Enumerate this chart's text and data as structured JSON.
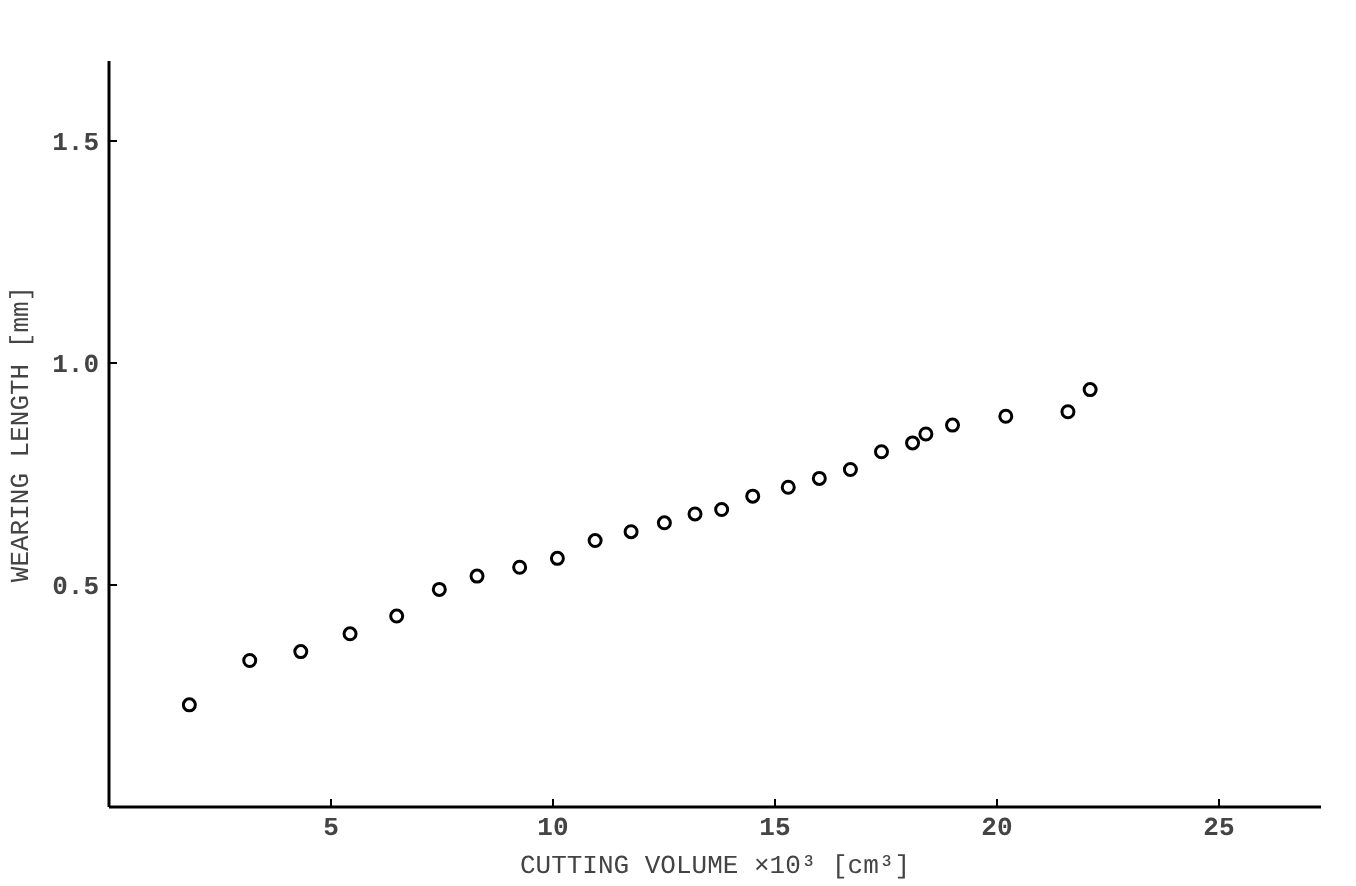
{
  "chart_data": {
    "type": "scatter",
    "xlabel": "CUTTING VOLUME ×10³ [cm³]",
    "ylabel": "WEARING LENGTH [mm]",
    "x": [
      1.81,
      3.17,
      4.32,
      5.43,
      6.48,
      7.44,
      8.29,
      9.25,
      10.1,
      10.95,
      11.76,
      12.51,
      13.2,
      13.8,
      14.5,
      15.3,
      16.0,
      16.7,
      17.4,
      18.1,
      18.4,
      19.0,
      20.2,
      21.6,
      22.1
    ],
    "values": [
      0.23,
      0.33,
      0.35,
      0.39,
      0.43,
      0.49,
      0.52,
      0.54,
      0.56,
      0.6,
      0.62,
      0.64,
      0.66,
      0.67,
      0.7,
      0.72,
      0.74,
      0.76,
      0.8,
      0.82,
      0.84,
      0.86,
      0.88,
      0.89,
      0.94
    ],
    "color": "#000000",
    "marker": "circle",
    "grid": false,
    "xlim": [
      0,
      27.3
    ],
    "ylim": [
      0,
      1.68
    ],
    "xticks": [
      5,
      10,
      15,
      20,
      25
    ],
    "yticks": [
      0.5,
      {
        "value": 1.0,
        "label": "1.0"
      },
      1.5
    ]
  }
}
